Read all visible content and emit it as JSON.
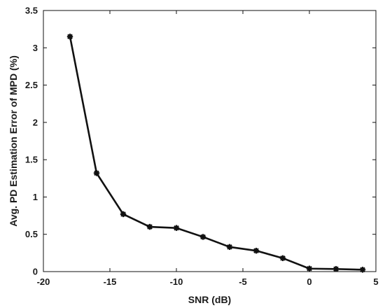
{
  "chart_data": {
    "type": "line",
    "title": "",
    "xlabel": "SNR (dB)",
    "ylabel": "Avg. PD Estimation Error of MPD (%)",
    "xlim": [
      -20,
      5
    ],
    "ylim": [
      0,
      3.5
    ],
    "xticks": [
      -20,
      -15,
      -10,
      -5,
      0,
      5
    ],
    "yticks": [
      0,
      0.5,
      1,
      1.5,
      2,
      2.5,
      3,
      3.5
    ],
    "xtick_labels": [
      "-20",
      "-15",
      "-10",
      "-5",
      "0",
      "5"
    ],
    "ytick_labels": [
      "0",
      "0.5",
      "1",
      "1.5",
      "2",
      "2.5",
      "3",
      "3.5"
    ],
    "grid": false,
    "legend": "none",
    "series": [
      {
        "x": [
          -18,
          -16,
          -14,
          -12,
          -10,
          -8,
          -6,
          -4,
          -2,
          0,
          2,
          4
        ],
        "y": [
          3.15,
          1.32,
          0.77,
          0.6,
          0.585,
          0.465,
          0.33,
          0.28,
          0.18,
          0.04,
          0.035,
          0.025
        ],
        "color": "#111111",
        "marker": "asterisk"
      }
    ]
  }
}
